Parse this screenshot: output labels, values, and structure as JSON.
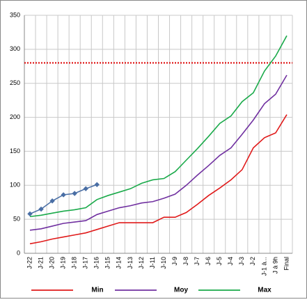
{
  "chart_data": {
    "type": "line",
    "categories": [
      "J-22",
      "J-21",
      "J-20",
      "J-19",
      "J-18",
      "J-17",
      "J-16",
      "J-15",
      "J-14",
      "J-13",
      "J-12",
      "J-11",
      "J-10",
      "J-9",
      "J-8",
      "J-7",
      "J-6",
      "J-5",
      "J-4",
      "J-3",
      "J-2",
      "J-1 à...",
      "J à 9h",
      "Final"
    ],
    "series": [
      {
        "name": "Min",
        "color": "#e01a1a",
        "values": [
          14,
          17,
          21,
          24,
          27,
          30,
          35,
          40,
          45,
          45,
          45,
          45,
          53,
          53,
          60,
          72,
          85,
          96,
          108,
          123,
          155,
          170,
          177,
          204
        ]
      },
      {
        "name": "Moy",
        "color": "#7030a0",
        "values": [
          34,
          36,
          40,
          44,
          46,
          48,
          57,
          62,
          67,
          70,
          74,
          76,
          81,
          87,
          100,
          115,
          129,
          144,
          155,
          175,
          196,
          220,
          234,
          262
        ]
      },
      {
        "name": "Max",
        "color": "#1aaa4a",
        "values": [
          54,
          56,
          59,
          62,
          64,
          67,
          79,
          85,
          90,
          95,
          103,
          108,
          110,
          120,
          137,
          154,
          172,
          191,
          202,
          223,
          236,
          268,
          290,
          320
        ]
      },
      {
        "color": "#4a6fa5",
        "markers": true,
        "values": [
          58,
          65,
          77,
          86,
          88,
          95,
          101,
          null,
          null,
          null,
          null,
          null,
          null,
          null,
          null,
          null,
          null,
          null,
          null,
          null,
          null,
          null,
          null,
          null
        ]
      }
    ],
    "reference_line": {
      "value": 280,
      "color": "#e01a1a",
      "dotted": true
    },
    "ylim": [
      0,
      350
    ],
    "yticks": [
      0,
      50,
      100,
      150,
      200,
      250,
      300,
      350
    ],
    "grid": true,
    "legend": "bottom"
  }
}
